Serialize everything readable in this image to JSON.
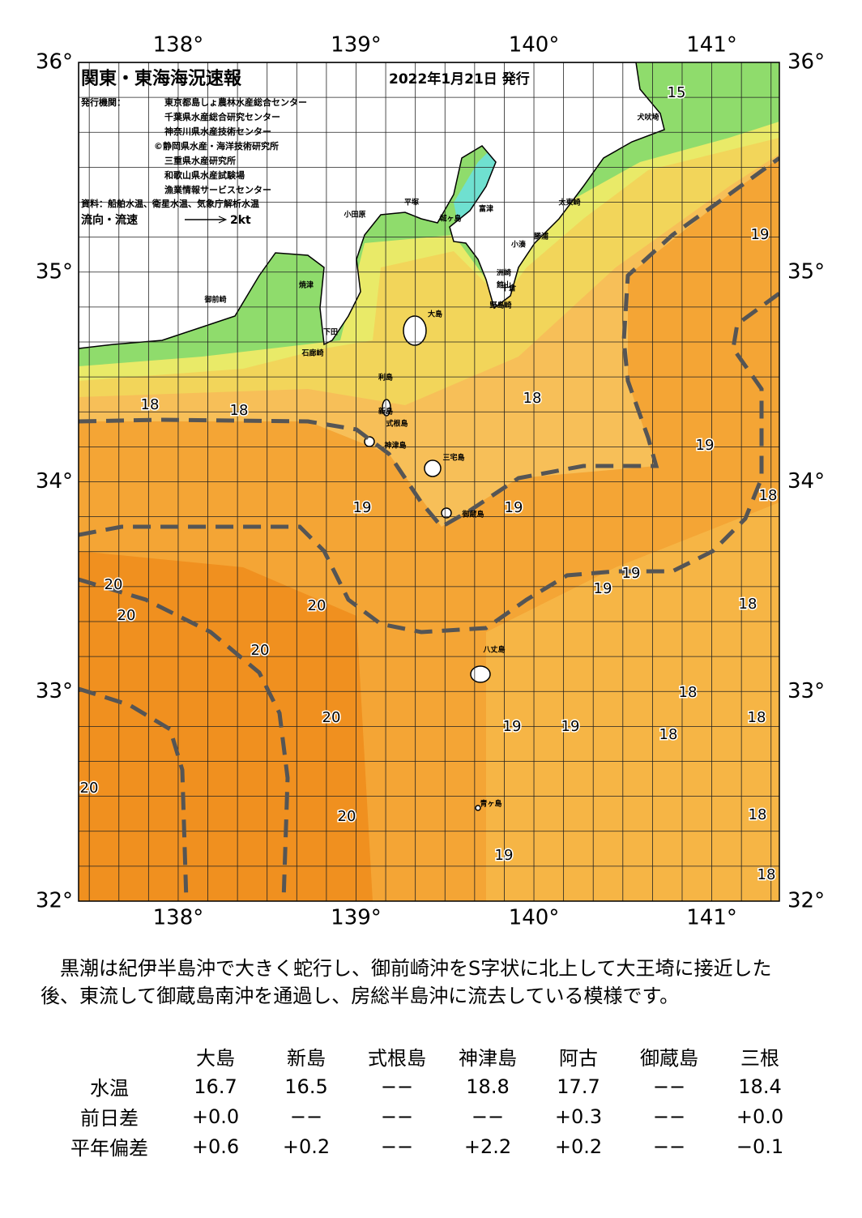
{
  "header": {
    "title": "関東・東海海況速報",
    "date": "2022年1月21日 発行",
    "issuer_label": "発行機関：",
    "issuers": [
      "東京都島しょ農林水産総合センター",
      "千葉県水産総合研究センター",
      "神奈川県水産技術センター",
      "©静岡県水産・海洋技術研究所",
      "三重県水産研究所",
      "和歌山県水産試験場",
      "漁業情報サービスセンター"
    ],
    "source": "資料：船舶水温、衛星水温、気象庁解析水温",
    "legend_label": "流向・流速",
    "legend_speed": "2kt"
  },
  "map": {
    "xlim": [
      137.44,
      141.38
    ],
    "ylim": [
      32,
      36
    ],
    "xticks": [
      {
        "value": 138,
        "label": "138°"
      },
      {
        "value": 139,
        "label": "139°"
      },
      {
        "value": 140,
        "label": "140°"
      },
      {
        "value": 141,
        "label": "141°"
      }
    ],
    "yticks": [
      {
        "value": 32,
        "label": "32°"
      },
      {
        "value": 33,
        "label": "33°"
      },
      {
        "value": 34,
        "label": "34°"
      },
      {
        "value": 35,
        "label": "35°"
      },
      {
        "value": 36,
        "label": "36°"
      }
    ],
    "isotherm_labels": [
      "15",
      "19",
      "18",
      "18",
      "18",
      "19",
      "18",
      "19",
      "19",
      "19",
      "19",
      "20",
      "20",
      "20",
      "20",
      "18",
      "18",
      "18",
      "20",
      "19",
      "19",
      "18",
      "20",
      "20",
      "18",
      "19",
      "18"
    ],
    "places": [
      "犬吠埼",
      "太東崎",
      "勝浦",
      "小湊",
      "洲崎",
      "館山",
      "千倉",
      "野島崎",
      "小田原",
      "平塚",
      "城ヶ島",
      "富津",
      "大島",
      "利島",
      "新島",
      "式根島",
      "神津島",
      "三宅島",
      "御蔵島",
      "八丈島",
      "青ヶ島",
      "石廊崎",
      "下田",
      "御前崎",
      "焼津"
    ]
  },
  "description": "黒潮は紀伊半島沖で大きく蛇行し、御前崎沖をS字状に北上して大王埼に接近した後、東流して御蔵島南沖を通過し、房総半島沖に流去している模様です。",
  "table": {
    "columns": [
      "大島",
      "新島",
      "式根島",
      "神津島",
      "阿古",
      "御蔵島",
      "三根"
    ],
    "rows": [
      [
        "水温",
        "16.7",
        "16.5",
        "−−",
        "18.8",
        "17.7",
        "−−",
        "18.4"
      ],
      [
        "前日差",
        "+0.0",
        "−−",
        "−−",
        "−−",
        "+0.3",
        "−−",
        "+0.0"
      ],
      [
        "平年偏差",
        "+0.6",
        "+0.2",
        "−−",
        "+2.2",
        "+0.2",
        "−−",
        "−0.1"
      ]
    ]
  }
}
